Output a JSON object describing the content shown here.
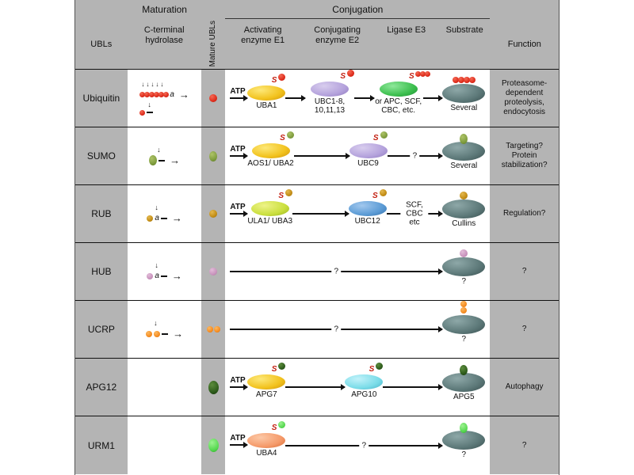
{
  "header": {
    "maturation": "Maturation",
    "conjugation": "Conjugation",
    "ubls": "UBLs",
    "c_terminal_hydrolase": "C-terminal hydrolase",
    "mature_ubls": "Mature UBLs",
    "activating_enzyme": "Activating enzyme E1",
    "conjugating_enzyme": "Conjugating enzyme E2",
    "ligase": "Ligase E3",
    "substrate": "Substrate",
    "function": "Function"
  },
  "s_label": "S",
  "rows": [
    {
      "name": "Ubiquitin",
      "mat_label": "a",
      "atp": "ATP",
      "e1": "UBA1",
      "e2": "UBC1-8, 10,11,13",
      "e3": "or APC, SCF, CBC, etc.",
      "substrate_label": "Several",
      "function": "Proteasome-dependent proteolysis, endocytosis",
      "color": "#dd2919"
    },
    {
      "name": "SUMO",
      "atp": "ATP",
      "e1": "AOS1/ UBA2",
      "e2": "UBC9",
      "arrow_label": "?",
      "substrate_label": "Several",
      "function": "Targeting? Protein stabilization?",
      "color": "#7d9b3c"
    },
    {
      "name": "RUB",
      "mat_label": "a",
      "atp": "ATP",
      "e1": "ULA1/ UBA3",
      "e2": "UBC12",
      "arrow_label": "SCF, CBC etc",
      "substrate_label": "Cullins",
      "function": "Regulation?",
      "color": "#c08a12"
    },
    {
      "name": "HUB",
      "mat_label": "a",
      "arrow_label": "?",
      "substrate_label": "?",
      "function": "?",
      "color": "#c791bb"
    },
    {
      "name": "UCRP",
      "arrow_label": "?",
      "substrate_label": "?",
      "function": "?",
      "color": "#f58a1e"
    },
    {
      "name": "APG12",
      "atp": "ATP",
      "e1": "APG7",
      "e2": "APG10",
      "substrate_label": "APG5",
      "function": "Autophagy",
      "color": "#2c5a1a"
    },
    {
      "name": "URM1",
      "atp": "ATP",
      "e1": "UBA4",
      "arrow_label": "?",
      "substrate_label": "?",
      "function": "?",
      "color": "#55d74f"
    }
  ],
  "colors": {
    "header_gray": "#b4b4b4",
    "substrate_slate": "#5c7878",
    "e1_yellow": "#f2c21d",
    "e2_lavender": "#b4a2dc",
    "e3_green": "#3cbf4e",
    "ubc12_blue": "#5b9bd5",
    "apg10_cyan": "#7adce8",
    "uba4_salmon": "#f59a6a",
    "thioester_s_red": "#c32011"
  }
}
